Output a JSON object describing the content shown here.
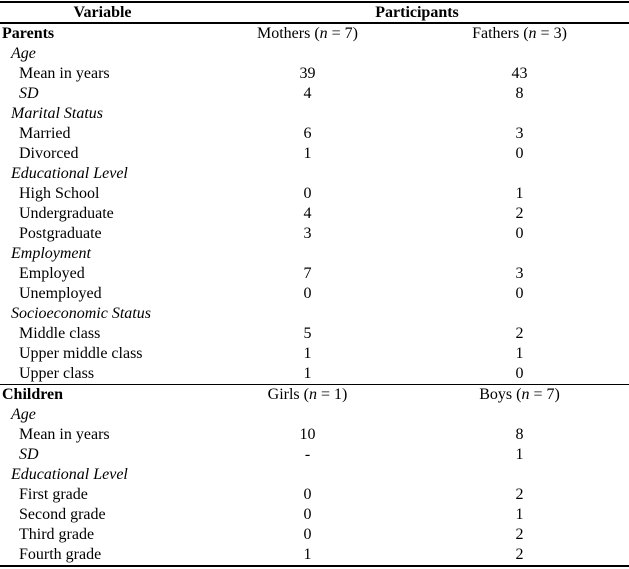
{
  "table": {
    "header": {
      "variable": "Variable",
      "participants": "Participants"
    },
    "groups": [
      {
        "name": "Parents",
        "col_a": {
          "pre": "Mothers (",
          "n": "n",
          "post": " = 7)"
        },
        "col_b": {
          "pre": "Fathers (",
          "n": "n",
          "post": " = 3)"
        },
        "rows": [
          {
            "label": "Age",
            "style": "category",
            "a": "",
            "b": ""
          },
          {
            "label": "Mean in years",
            "style": "item",
            "a": "39",
            "b": "43"
          },
          {
            "label": "SD",
            "style": "item-italic",
            "a": "4",
            "b": "8"
          },
          {
            "label": "Marital Status",
            "style": "category",
            "a": "",
            "b": ""
          },
          {
            "label": "Married",
            "style": "item",
            "a": "6",
            "b": "3"
          },
          {
            "label": "Divorced",
            "style": "item",
            "a": "1",
            "b": "0"
          },
          {
            "label": "Educational Level",
            "style": "category",
            "a": "",
            "b": ""
          },
          {
            "label": "High School",
            "style": "item",
            "a": "0",
            "b": "1"
          },
          {
            "label": "Undergraduate",
            "style": "item",
            "a": "4",
            "b": "2"
          },
          {
            "label": "Postgraduate",
            "style": "item",
            "a": "3",
            "b": "0"
          },
          {
            "label": "Employment",
            "style": "category",
            "a": "",
            "b": ""
          },
          {
            "label": "Employed",
            "style": "item",
            "a": "7",
            "b": "3"
          },
          {
            "label": "Unemployed",
            "style": "item",
            "a": "0",
            "b": "0"
          },
          {
            "label": "Socioeconomic Status",
            "style": "category",
            "a": "",
            "b": ""
          },
          {
            "label": "Middle class",
            "style": "item",
            "a": "5",
            "b": "2"
          },
          {
            "label": "Upper middle class",
            "style": "item",
            "a": "1",
            "b": "1"
          },
          {
            "label": "Upper class",
            "style": "item",
            "a": "1",
            "b": "0"
          }
        ]
      },
      {
        "name": "Children",
        "col_a": {
          "pre": "Girls (",
          "n": "n",
          "post": " = 1)"
        },
        "col_b": {
          "pre": "Boys (",
          "n": "n",
          "post": " = 7)"
        },
        "rows": [
          {
            "label": "Age",
            "style": "category",
            "a": "",
            "b": ""
          },
          {
            "label": "Mean in years",
            "style": "item",
            "a": "10",
            "b": "8"
          },
          {
            "label": "SD",
            "style": "item-italic",
            "a": "-",
            "b": "1"
          },
          {
            "label": "Educational Level",
            "style": "category",
            "a": "",
            "b": ""
          },
          {
            "label": "First grade",
            "style": "item",
            "a": "0",
            "b": "2"
          },
          {
            "label": "Second grade",
            "style": "item",
            "a": "0",
            "b": "1"
          },
          {
            "label": "Third grade",
            "style": "item",
            "a": "0",
            "b": "2"
          },
          {
            "label": "Fourth grade",
            "style": "item",
            "a": "1",
            "b": "2"
          }
        ]
      }
    ]
  }
}
